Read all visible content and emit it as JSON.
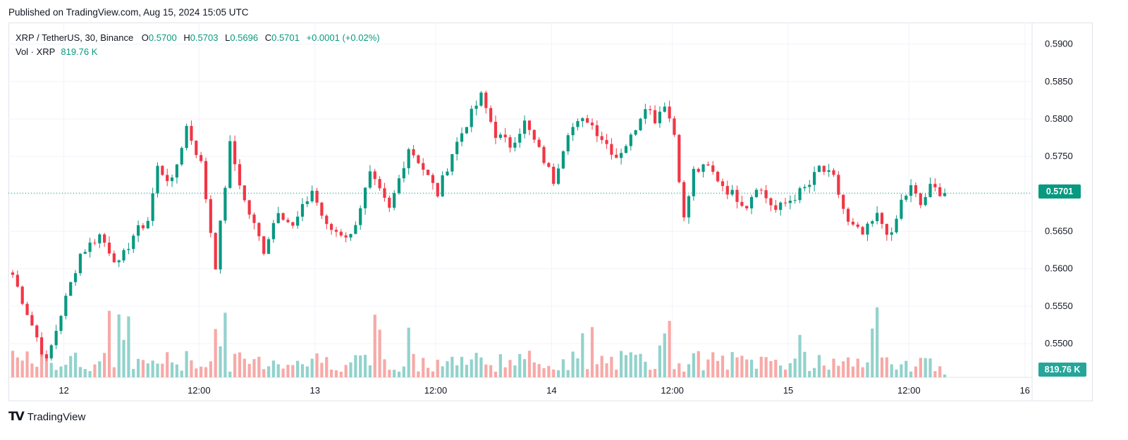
{
  "header": {
    "published": "Published on TradingView.com, Aug 15, 2024 15:05 UTC"
  },
  "legend": {
    "symbol": "XRP / TetherUS, 30, Binance",
    "open_label": "O",
    "open": "0.5700",
    "high_label": "H",
    "high": "0.5703",
    "low_label": "L",
    "low": "0.5696",
    "close_label": "C",
    "close": "0.5701",
    "change": "+0.0001 (+0.02%)",
    "volume_label": "Vol · XRP",
    "volume": "819.76 K"
  },
  "price_label": "0.5701",
  "volume_label": "819.76 K",
  "logo_text": "TradingView",
  "colors": {
    "up": "#089981",
    "down": "#f23645",
    "vol_up": "#92d2cc",
    "vol_down": "#f7a9a7",
    "grid": "#f0f3fa"
  },
  "chart_data": {
    "type": "candlestick",
    "timeframe": "30",
    "y_ticks": [
      0.55,
      0.555,
      0.56,
      0.565,
      0.57,
      0.575,
      0.58,
      0.585,
      0.59
    ],
    "y_tick_labels": [
      "0.5500",
      "0.5550",
      "0.5600",
      "0.5650",
      "0.5700",
      "0.5750",
      "0.5800",
      "0.5850",
      "0.5900"
    ],
    "x_tick_labels": [
      "12",
      "12:00",
      "13",
      "12:00",
      "14",
      "12:00",
      "15",
      "12:00",
      "16"
    ],
    "ylim": [
      0.5455,
      0.5925
    ],
    "last_price": 0.5701,
    "waypoints": [
      {
        "i": 0,
        "p": 0.5592
      },
      {
        "i": 4,
        "p": 0.5525
      },
      {
        "i": 7,
        "p": 0.5475
      },
      {
        "i": 10,
        "p": 0.554
      },
      {
        "i": 14,
        "p": 0.562
      },
      {
        "i": 18,
        "p": 0.5645
      },
      {
        "i": 22,
        "p": 0.5605
      },
      {
        "i": 25,
        "p": 0.5645
      },
      {
        "i": 28,
        "p": 0.5665
      },
      {
        "i": 30,
        "p": 0.5735
      },
      {
        "i": 33,
        "p": 0.5715
      },
      {
        "i": 36,
        "p": 0.579
      },
      {
        "i": 39,
        "p": 0.574
      },
      {
        "i": 42,
        "p": 0.5605
      },
      {
        "i": 45,
        "p": 0.5765
      },
      {
        "i": 48,
        "p": 0.569
      },
      {
        "i": 52,
        "p": 0.5625
      },
      {
        "i": 55,
        "p": 0.568
      },
      {
        "i": 58,
        "p": 0.5655
      },
      {
        "i": 62,
        "p": 0.5705
      },
      {
        "i": 65,
        "p": 0.5655
      },
      {
        "i": 70,
        "p": 0.5643
      },
      {
        "i": 74,
        "p": 0.5725
      },
      {
        "i": 78,
        "p": 0.5678
      },
      {
        "i": 82,
        "p": 0.5762
      },
      {
        "i": 84,
        "p": 0.5745
      },
      {
        "i": 88,
        "p": 0.57
      },
      {
        "i": 91,
        "p": 0.5755
      },
      {
        "i": 94,
        "p": 0.5795
      },
      {
        "i": 97,
        "p": 0.583
      },
      {
        "i": 100,
        "p": 0.578
      },
      {
        "i": 103,
        "p": 0.5765
      },
      {
        "i": 106,
        "p": 0.5795
      },
      {
        "i": 110,
        "p": 0.5745
      },
      {
        "i": 112,
        "p": 0.5718
      },
      {
        "i": 115,
        "p": 0.5785
      },
      {
        "i": 119,
        "p": 0.58
      },
      {
        "i": 122,
        "p": 0.5775
      },
      {
        "i": 125,
        "p": 0.575
      },
      {
        "i": 128,
        "p": 0.5775
      },
      {
        "i": 131,
        "p": 0.582
      },
      {
        "i": 133,
        "p": 0.58
      },
      {
        "i": 135,
        "p": 0.5822
      },
      {
        "i": 137,
        "p": 0.578
      },
      {
        "i": 139,
        "p": 0.5665
      },
      {
        "i": 141,
        "p": 0.573
      },
      {
        "i": 144,
        "p": 0.5735
      },
      {
        "i": 148,
        "p": 0.5705
      },
      {
        "i": 152,
        "p": 0.5685
      },
      {
        "i": 154,
        "p": 0.5712
      },
      {
        "i": 158,
        "p": 0.5678
      },
      {
        "i": 161,
        "p": 0.5692
      },
      {
        "i": 165,
        "p": 0.5712
      },
      {
        "i": 167,
        "p": 0.5735
      },
      {
        "i": 170,
        "p": 0.572
      },
      {
        "i": 173,
        "p": 0.566
      },
      {
        "i": 176,
        "p": 0.5645
      },
      {
        "i": 179,
        "p": 0.567
      },
      {
        "i": 182,
        "p": 0.5642
      },
      {
        "i": 184,
        "p": 0.569
      },
      {
        "i": 186,
        "p": 0.5708
      },
      {
        "i": 188,
        "p": 0.5685
      },
      {
        "i": 190,
        "p": 0.5708
      },
      {
        "i": 193,
        "p": 0.5701
      }
    ],
    "volume_note": "volume bars scaled to bottom pane"
  }
}
